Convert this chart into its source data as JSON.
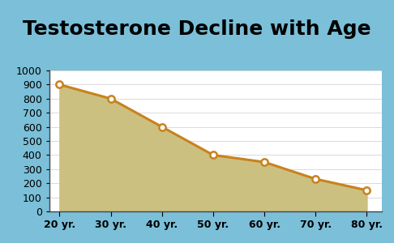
{
  "title": "Testosterone Decline with Age",
  "x_values": [
    20,
    30,
    40,
    50,
    60,
    70,
    80
  ],
  "y_values": [
    900,
    800,
    600,
    400,
    350,
    230,
    150
  ],
  "x_tick_labels": [
    "20 yr.",
    "30 yr.",
    "40 yr.",
    "50 yr.",
    "60 yr.",
    "70 yr.",
    "80 yr."
  ],
  "ylim": [
    0,
    1000
  ],
  "xlim": [
    18,
    83
  ],
  "y_ticks": [
    0,
    100,
    200,
    300,
    400,
    500,
    600,
    700,
    800,
    900,
    1000
  ],
  "line_color": "#c8821e",
  "fill_color": "#ccc080",
  "marker_face": "#ffffff",
  "bg_outer": "#7bbfd8",
  "bg_inner": "#e8e0c0",
  "plot_bg": "#ffffff",
  "title_fontsize": 18,
  "tick_fontsize": 9,
  "line_width": 2.2,
  "marker_size": 6,
  "border_color": "#444444"
}
